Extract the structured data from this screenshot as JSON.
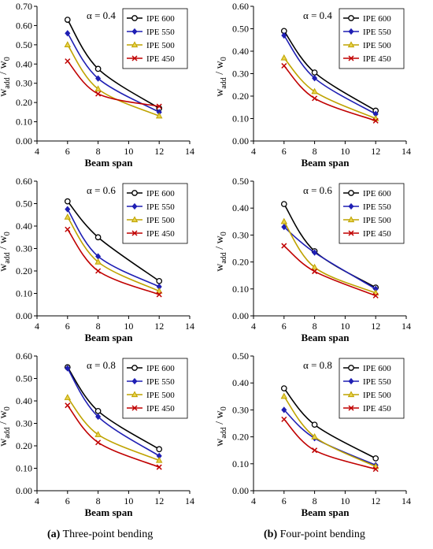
{
  "captions": [
    {
      "letter": "(a)",
      "text": " Three-point bending"
    },
    {
      "letter": "(b)",
      "text": " Four-point bending"
    }
  ],
  "colors": {
    "IPE 600": "#000000",
    "IPE 550": "#1f1fb4",
    "IPE 500": "#bfa300",
    "IPE 450": "#c00000"
  },
  "chart_data": [
    {
      "type": "line",
      "title": "α = 0.4",
      "xlabel": "Beam span",
      "ylabel_main": "w",
      "ylabel_sub": "add",
      "ylabel_rest": " / w",
      "ylabel_sub2": "0",
      "xlim": [
        4,
        14
      ],
      "xticks": [
        4,
        6,
        8,
        10,
        12,
        14
      ],
      "ylim": [
        0,
        0.7
      ],
      "yticks": [
        0,
        0.1,
        0.2,
        0.3,
        0.4,
        0.5,
        0.6,
        0.7
      ],
      "x": [
        6,
        8,
        12
      ],
      "series": [
        {
          "name": "IPE 600",
          "values": [
            0.63,
            0.375,
            0.17
          ]
        },
        {
          "name": "IPE 550",
          "values": [
            0.56,
            0.325,
            0.15
          ]
        },
        {
          "name": "IPE 500",
          "values": [
            0.5,
            0.27,
            0.13
          ]
        },
        {
          "name": "IPE 450",
          "values": [
            0.415,
            0.245,
            0.18
          ]
        }
      ]
    },
    {
      "type": "line",
      "title": "α = 0.4",
      "xlabel": "Beam span",
      "ylabel_main": "w",
      "ylabel_sub": "add",
      "ylabel_rest": " / w",
      "ylabel_sub2": "0",
      "xlim": [
        4,
        14
      ],
      "xticks": [
        4,
        6,
        8,
        10,
        12,
        14
      ],
      "ylim": [
        0,
        0.6
      ],
      "yticks": [
        0,
        0.1,
        0.2,
        0.3,
        0.4,
        0.5,
        0.6
      ],
      "x": [
        6,
        8,
        12
      ],
      "series": [
        {
          "name": "IPE 600",
          "values": [
            0.49,
            0.305,
            0.135
          ]
        },
        {
          "name": "IPE 550",
          "values": [
            0.47,
            0.28,
            0.12
          ]
        },
        {
          "name": "IPE 500",
          "values": [
            0.37,
            0.22,
            0.1
          ]
        },
        {
          "name": "IPE 450",
          "values": [
            0.335,
            0.19,
            0.09
          ]
        }
      ]
    },
    {
      "type": "line",
      "title": "α = 0.6",
      "xlabel": "Beam span",
      "ylabel_main": "w",
      "ylabel_sub": "add",
      "ylabel_rest": " / w",
      "ylabel_sub2": "0",
      "xlim": [
        4,
        14
      ],
      "xticks": [
        4,
        6,
        8,
        10,
        12,
        14
      ],
      "ylim": [
        0,
        0.6
      ],
      "yticks": [
        0,
        0.1,
        0.2,
        0.3,
        0.4,
        0.5,
        0.6
      ],
      "x": [
        6,
        8,
        12
      ],
      "series": [
        {
          "name": "IPE 600",
          "values": [
            0.51,
            0.35,
            0.155
          ]
        },
        {
          "name": "IPE 550",
          "values": [
            0.475,
            0.265,
            0.13
          ]
        },
        {
          "name": "IPE 500",
          "values": [
            0.44,
            0.24,
            0.11
          ]
        },
        {
          "name": "IPE 450",
          "values": [
            0.385,
            0.2,
            0.095
          ]
        }
      ]
    },
    {
      "type": "line",
      "title": "α = 0.6",
      "xlabel": "Beam span",
      "ylabel_main": "w",
      "ylabel_sub": "add",
      "ylabel_rest": " / w",
      "ylabel_sub2": "0",
      "xlim": [
        4,
        14
      ],
      "xticks": [
        4,
        6,
        8,
        10,
        12,
        14
      ],
      "ylim": [
        0,
        0.5
      ],
      "yticks": [
        0,
        0.1,
        0.2,
        0.3,
        0.4,
        0.5
      ],
      "x": [
        6,
        8,
        12
      ],
      "series": [
        {
          "name": "IPE 600",
          "values": [
            0.415,
            0.24,
            0.105
          ]
        },
        {
          "name": "IPE 550",
          "values": [
            0.33,
            0.235,
            0.1
          ]
        },
        {
          "name": "IPE 500",
          "values": [
            0.35,
            0.18,
            0.085
          ]
        },
        {
          "name": "IPE 450",
          "values": [
            0.26,
            0.165,
            0.075
          ]
        }
      ]
    },
    {
      "type": "line",
      "title": "α = 0.8",
      "xlabel": "Beam span",
      "ylabel_main": "w",
      "ylabel_sub": "add",
      "ylabel_rest": " / w",
      "ylabel_sub2": "0",
      "xlim": [
        4,
        14
      ],
      "xticks": [
        4,
        6,
        8,
        10,
        12,
        14
      ],
      "ylim": [
        0,
        0.6
      ],
      "yticks": [
        0,
        0.1,
        0.2,
        0.3,
        0.4,
        0.5,
        0.6
      ],
      "x": [
        6,
        8,
        12
      ],
      "series": [
        {
          "name": "IPE 600",
          "values": [
            0.55,
            0.355,
            0.185
          ]
        },
        {
          "name": "IPE 550",
          "values": [
            0.545,
            0.33,
            0.155
          ]
        },
        {
          "name": "IPE 500",
          "values": [
            0.415,
            0.25,
            0.135
          ]
        },
        {
          "name": "IPE 450",
          "values": [
            0.38,
            0.215,
            0.105
          ]
        }
      ]
    },
    {
      "type": "line",
      "title": "α = 0.8",
      "xlabel": "Beam span",
      "ylabel_main": "w",
      "ylabel_sub": "add",
      "ylabel_rest": " / w",
      "ylabel_sub2": "0",
      "xlim": [
        4,
        14
      ],
      "xticks": [
        4,
        6,
        8,
        10,
        12,
        14
      ],
      "ylim": [
        0,
        0.5
      ],
      "yticks": [
        0,
        0.1,
        0.2,
        0.3,
        0.4,
        0.5
      ],
      "x": [
        6,
        8,
        12
      ],
      "series": [
        {
          "name": "IPE 600",
          "values": [
            0.38,
            0.245,
            0.12
          ]
        },
        {
          "name": "IPE 550",
          "values": [
            0.3,
            0.195,
            0.095
          ]
        },
        {
          "name": "IPE 500",
          "values": [
            0.35,
            0.2,
            0.09
          ]
        },
        {
          "name": "IPE 450",
          "values": [
            0.265,
            0.15,
            0.08
          ]
        }
      ]
    }
  ]
}
